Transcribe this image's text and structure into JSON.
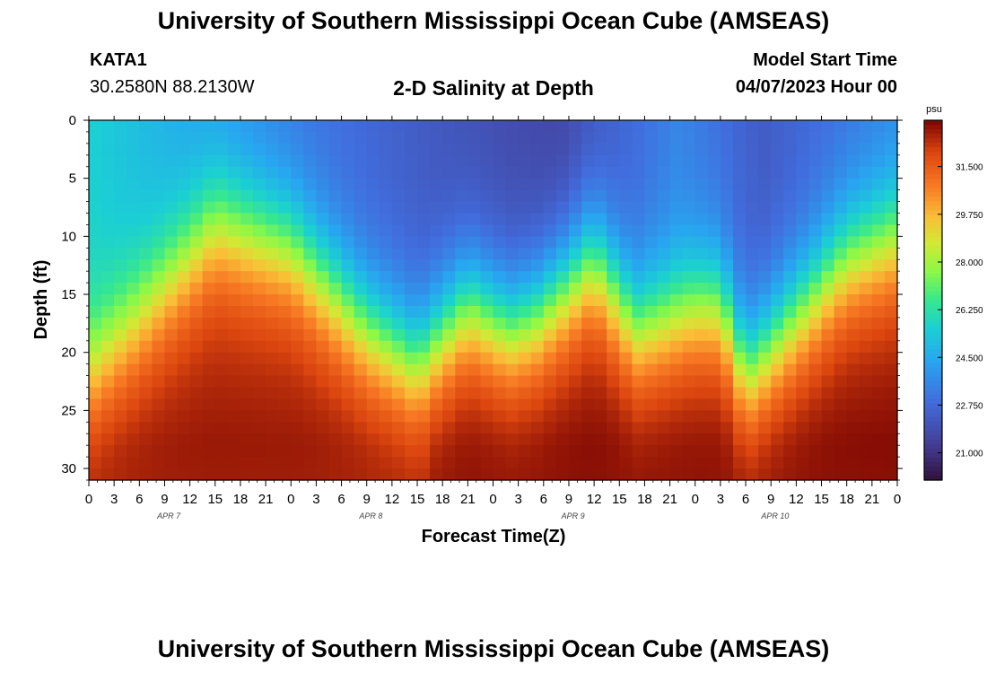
{
  "header": {
    "title": "University of Southern Mississippi Ocean Cube (AMSEAS)",
    "station_id": "KATA1",
    "station_coords": "30.2580N  88.2130W",
    "plot_name": "2-D Salinity at Depth",
    "model_start_label": "Model Start Time",
    "model_start_value": "04/07/2023 Hour 00"
  },
  "footer": {
    "title": "University of Southern Mississippi Ocean Cube (AMSEAS)"
  },
  "chart_data": {
    "type": "heatmap",
    "title": "2-D Salinity at Depth",
    "xlabel": "Forecast Time(Z)",
    "ylabel": "Depth (ft)",
    "x_ticks": [
      "0",
      "3",
      "6",
      "9",
      "12",
      "15",
      "18",
      "21",
      "0",
      "3",
      "6",
      "9",
      "12",
      "15",
      "18",
      "21",
      "0",
      "3",
      "6",
      "9",
      "12",
      "15",
      "18",
      "21",
      "0",
      "3",
      "6",
      "9",
      "12",
      "15",
      "18",
      "21",
      "0"
    ],
    "date_labels": [
      "APR 7",
      "APR 8",
      "APR 9",
      "APR 10"
    ],
    "x_range_hours": [
      0,
      96
    ],
    "y_ticks": [
      0,
      5,
      10,
      15,
      20,
      25,
      30
    ],
    "y_range_ft": [
      0,
      31
    ],
    "colorbar": {
      "unit": "psu",
      "ticks": [
        "31.500",
        "29.750",
        "28.000",
        "26.250",
        "24.500",
        "22.750",
        "21.000"
      ],
      "range": [
        20.0,
        33.2
      ]
    },
    "halocline_depth_ft": {
      "hours": [
        0,
        6,
        15,
        24,
        33,
        39,
        45,
        50,
        53,
        60,
        65,
        69,
        72,
        75,
        78,
        84,
        90,
        96
      ],
      "depths": [
        22,
        17,
        9,
        11,
        18,
        21,
        16,
        18,
        17,
        12,
        18,
        17,
        16,
        16,
        22,
        17,
        12,
        10
      ]
    },
    "surface_min_psu": [
      {
        "hour": 0,
        "value": 25.6
      },
      {
        "hour": 24,
        "value": 23.2
      },
      {
        "hour": 45,
        "value": 22.0
      },
      {
        "hour": 56,
        "value": 21.6
      },
      {
        "hour": 70,
        "value": 23.5
      },
      {
        "hour": 80,
        "value": 22.3
      },
      {
        "hour": 96,
        "value": 23.5
      }
    ],
    "bottom_max_psu": 33.2
  }
}
